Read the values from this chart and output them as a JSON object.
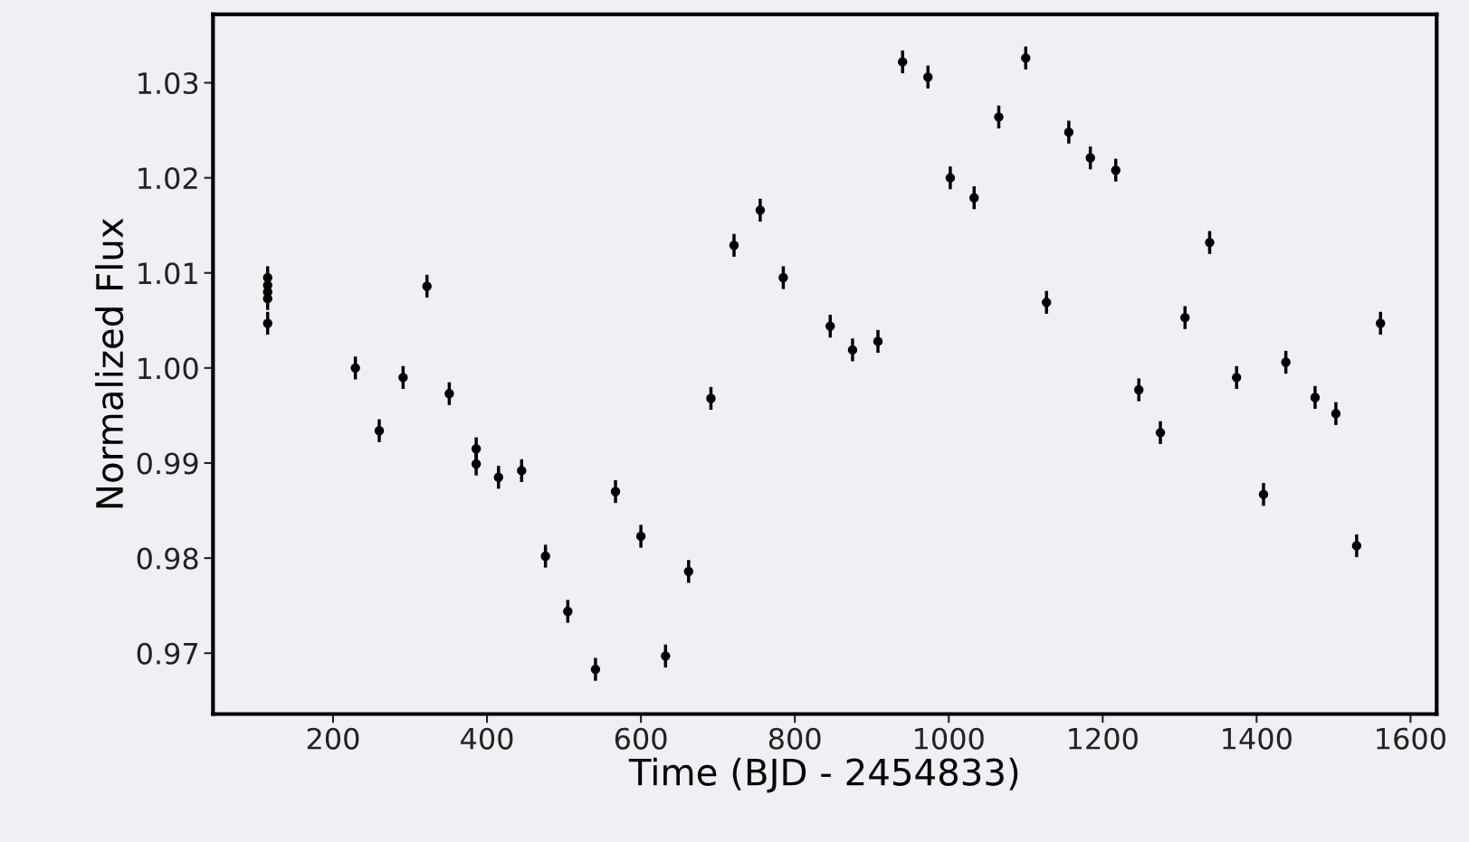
{
  "chart_data": {
    "type": "scatter",
    "xlabel": "Time (BJD - 2454833)",
    "ylabel": "Normalized Flux",
    "x": [
      115,
      115,
      115,
      115,
      115,
      229,
      260,
      291,
      322,
      351,
      386,
      386,
      415,
      445,
      476,
      505,
      541,
      567,
      600,
      632,
      662,
      691,
      721,
      755,
      785,
      846,
      875,
      908,
      940,
      973,
      1002,
      1033,
      1065,
      1100,
      1127,
      1156,
      1184,
      1217,
      1247,
      1275,
      1307,
      1339,
      1374,
      1409,
      1438,
      1476,
      1503,
      1530,
      1561
    ],
    "series": [
      {
        "color": "#000000",
        "values": [
          1.0095,
          1.0087,
          1.008,
          1.0073,
          1.0047,
          1.0,
          0.9934,
          0.999,
          1.0086,
          0.9973,
          0.9915,
          0.9899,
          0.9885,
          0.9892,
          0.9802,
          0.9744,
          0.9683,
          0.987,
          0.9823,
          0.9697,
          0.9786,
          0.9968,
          1.0129,
          1.0166,
          1.0095,
          1.0044,
          1.0019,
          1.0028,
          1.0322,
          1.0306,
          1.02,
          1.0179,
          1.0264,
          1.0326,
          1.0069,
          1.0248,
          1.0221,
          1.0208,
          0.9977,
          0.9932,
          1.0053,
          1.0132,
          0.999,
          0.9867,
          1.0006,
          0.9969,
          0.9952,
          0.9813,
          1.0047
        ],
        "errors": [
          0.0012,
          0.0012,
          0.0012,
          0.0012,
          0.0012,
          0.0012,
          0.0012,
          0.0012,
          0.0012,
          0.0012,
          0.0012,
          0.0012,
          0.0012,
          0.0012,
          0.0012,
          0.0012,
          0.0012,
          0.0012,
          0.0012,
          0.0012,
          0.0012,
          0.0012,
          0.0012,
          0.0012,
          0.0012,
          0.0012,
          0.0012,
          0.0012,
          0.0012,
          0.0012,
          0.0012,
          0.0012,
          0.0012,
          0.0012,
          0.0012,
          0.0012,
          0.0012,
          0.0012,
          0.0012,
          0.0012,
          0.0012,
          0.0012,
          0.0012,
          0.0012,
          0.0012,
          0.0012,
          0.0012,
          0.0012,
          0.0012
        ]
      }
    ],
    "xlim": [
      44,
      1634
    ],
    "ylim": [
      0.9636,
      1.0372
    ],
    "xticks": [
      200,
      400,
      600,
      800,
      1000,
      1200,
      1400,
      1600
    ],
    "yticks": [
      {
        "value": 0.97,
        "label": "0.97"
      },
      {
        "value": 0.98,
        "label": "0.98"
      },
      {
        "value": 0.99,
        "label": "0.99"
      },
      {
        "value": 1.0,
        "label": "1.00"
      },
      {
        "value": 1.01,
        "label": "1.01"
      },
      {
        "value": 1.02,
        "label": "1.02"
      },
      {
        "value": 1.03,
        "label": "1.03"
      }
    ],
    "marker": "circle",
    "grid": false,
    "legend": false
  }
}
